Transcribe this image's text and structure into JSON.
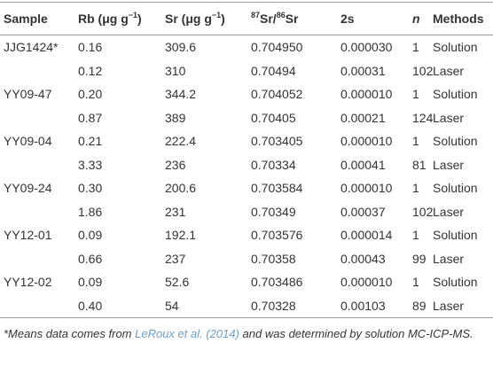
{
  "table": {
    "header": [
      [
        {
          "text": "Sample"
        }
      ],
      [
        {
          "text": "Rb (μg g"
        },
        {
          "text": "−1",
          "sup": true
        },
        {
          "text": ")"
        }
      ],
      [
        {
          "text": "Sr (μg g"
        },
        {
          "text": "−1",
          "sup": true
        },
        {
          "text": ")"
        }
      ],
      [
        {
          "text": "87",
          "sup": true
        },
        {
          "text": "Sr/"
        },
        {
          "text": "86",
          "sup": true
        },
        {
          "text": "Sr"
        }
      ],
      [
        {
          "text": "2s"
        }
      ],
      [
        {
          "text": "n",
          "italic": true
        }
      ],
      [
        {
          "text": "Methods"
        }
      ]
    ],
    "rows": [
      [
        "JJG1424*",
        "0.16",
        "309.6",
        "0.704950",
        "0.000030",
        "1",
        "Solution"
      ],
      [
        null,
        "0.12",
        "310",
        "0.70494",
        "0.00031",
        "102",
        "Laser"
      ],
      [
        "YY09-47",
        "0.20",
        "344.2",
        "0.704052",
        "0.000010",
        "1",
        "Solution"
      ],
      [
        null,
        "0.87",
        "389",
        "0.70405",
        "0.00021",
        "124",
        "Laser"
      ],
      [
        "YY09-04",
        "0.21",
        "222.4",
        "0.703405",
        "0.000010",
        "1",
        "Solution"
      ],
      [
        null,
        "3.33",
        "236",
        "0.70334",
        "0.00041",
        "81",
        "Laser"
      ],
      [
        "YY09-24",
        "0.30",
        "200.6",
        "0.703584",
        "0.000010",
        "1",
        "Solution"
      ],
      [
        null,
        "1.86",
        "231",
        "0.70349",
        "0.00037",
        "102",
        "Laser"
      ],
      [
        "YY12-01",
        "0.09",
        "192.1",
        "0.703576",
        "0.000014",
        "1",
        "Solution"
      ],
      [
        null,
        "0.66",
        "237",
        "0.70358",
        "0.00043",
        "99",
        "Laser"
      ],
      [
        "YY12-02",
        "0.09",
        "52.6",
        "0.703486",
        "0.000010",
        "1",
        "Solution"
      ],
      [
        null,
        "0.40",
        "54",
        "0.70328",
        "0.00103",
        "89",
        "Laser"
      ]
    ]
  },
  "footnote": [
    {
      "text": "*Means data comes from "
    },
    {
      "text": "LeRoux et al. (2014)",
      "link": true
    },
    {
      "text": " and was determined by solution MC-ICP-MS."
    }
  ]
}
